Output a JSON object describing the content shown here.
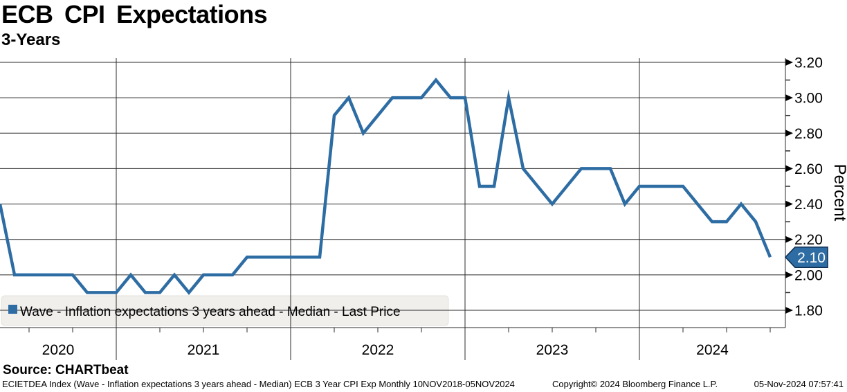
{
  "title": "ECB CPI Expectations",
  "subtitle": "3-Years",
  "source_line": "Source: CHARTbeat",
  "footer": {
    "left": "ECIETDEA Index (Wave - Inflation expectations 3 years ahead - Median) ECB 3 Year CPI Exp  Monthly 10NOV2018-05NOV2024",
    "copyright": "Copyright© 2024 Bloomberg Finance L.P.",
    "timestamp": "05-Nov-2024 07:57:41"
  },
  "legend": {
    "label": "Wave - Inflation expectations 3 years ahead - Median - Last Price",
    "marker_color": "#2e6da4",
    "box_color": "#f1efec"
  },
  "last_price_tag": {
    "label": "2.10",
    "fill": "#2e6da4",
    "text_color": "#ffffff"
  },
  "colors": {
    "series_line": "#2e6da4",
    "grid": "#2b2b2b",
    "axis": "#2b2b2b",
    "text": "#000000",
    "background": "#ffffff"
  },
  "chart_data": {
    "type": "line",
    "title": "ECB CPI Expectations",
    "subtitle": "3-Years",
    "ylabel": "Percent",
    "xlabel": "",
    "grid": true,
    "legend_position": "bottom-left",
    "ylim": [
      1.7,
      3.2
    ],
    "yticks_major": [
      "3.20",
      "3.00",
      "2.80",
      "2.60",
      "2.40",
      "2.20",
      "2.00",
      "1.80"
    ],
    "yticks_minor": [
      3.1,
      2.9,
      2.7,
      2.5,
      2.3,
      2.1,
      1.9
    ],
    "x_year_labels": [
      "2020",
      "2021",
      "2022",
      "2023",
      "2024"
    ],
    "year_separators": [
      2021,
      2022,
      2023,
      2024
    ],
    "quarter_tick_months": [
      4,
      7,
      10
    ],
    "x_range": [
      "2020-05",
      "2024-11"
    ],
    "last_price": "2.10",
    "series": [
      {
        "name": "Wave - Inflation expectations 3 years ahead - Median",
        "color": "#2e6da4",
        "points": [
          [
            "2020-05",
            2.4
          ],
          [
            "2020-06",
            2.0
          ],
          [
            "2020-07",
            2.0
          ],
          [
            "2020-08",
            2.0
          ],
          [
            "2020-09",
            2.0
          ],
          [
            "2020-10",
            2.0
          ],
          [
            "2020-11",
            1.9
          ],
          [
            "2020-12",
            1.9
          ],
          [
            "2021-01",
            1.9
          ],
          [
            "2021-02",
            2.0
          ],
          [
            "2021-03",
            1.9
          ],
          [
            "2021-04",
            1.9
          ],
          [
            "2021-05",
            2.0
          ],
          [
            "2021-06",
            1.9
          ],
          [
            "2021-07",
            2.0
          ],
          [
            "2021-08",
            2.0
          ],
          [
            "2021-09",
            2.0
          ],
          [
            "2021-10",
            2.1
          ],
          [
            "2021-11",
            2.1
          ],
          [
            "2021-12",
            2.1
          ],
          [
            "2022-01",
            2.1
          ],
          [
            "2022-02",
            2.1
          ],
          [
            "2022-03",
            2.1
          ],
          [
            "2022-04",
            2.9
          ],
          [
            "2022-05",
            3.0
          ],
          [
            "2022-06",
            2.8
          ],
          [
            "2022-07",
            2.9
          ],
          [
            "2022-08",
            3.0
          ],
          [
            "2022-09",
            3.0
          ],
          [
            "2022-10",
            3.0
          ],
          [
            "2022-11",
            3.1
          ],
          [
            "2022-12",
            3.0
          ],
          [
            "2023-01",
            3.0
          ],
          [
            "2023-02",
            2.5
          ],
          [
            "2023-03",
            2.5
          ],
          [
            "2023-04",
            3.0
          ],
          [
            "2023-05",
            2.6
          ],
          [
            "2023-06",
            2.5
          ],
          [
            "2023-07",
            2.4
          ],
          [
            "2023-08",
            2.5
          ],
          [
            "2023-09",
            2.6
          ],
          [
            "2023-10",
            2.6
          ],
          [
            "2023-11",
            2.6
          ],
          [
            "2023-12",
            2.4
          ],
          [
            "2024-01",
            2.5
          ],
          [
            "2024-02",
            2.5
          ],
          [
            "2024-03",
            2.5
          ],
          [
            "2024-04",
            2.5
          ],
          [
            "2024-05",
            2.4
          ],
          [
            "2024-06",
            2.3
          ],
          [
            "2024-07",
            2.3
          ],
          [
            "2024-08",
            2.4
          ],
          [
            "2024-09",
            2.3
          ],
          [
            "2024-10",
            2.1
          ]
        ]
      }
    ]
  }
}
